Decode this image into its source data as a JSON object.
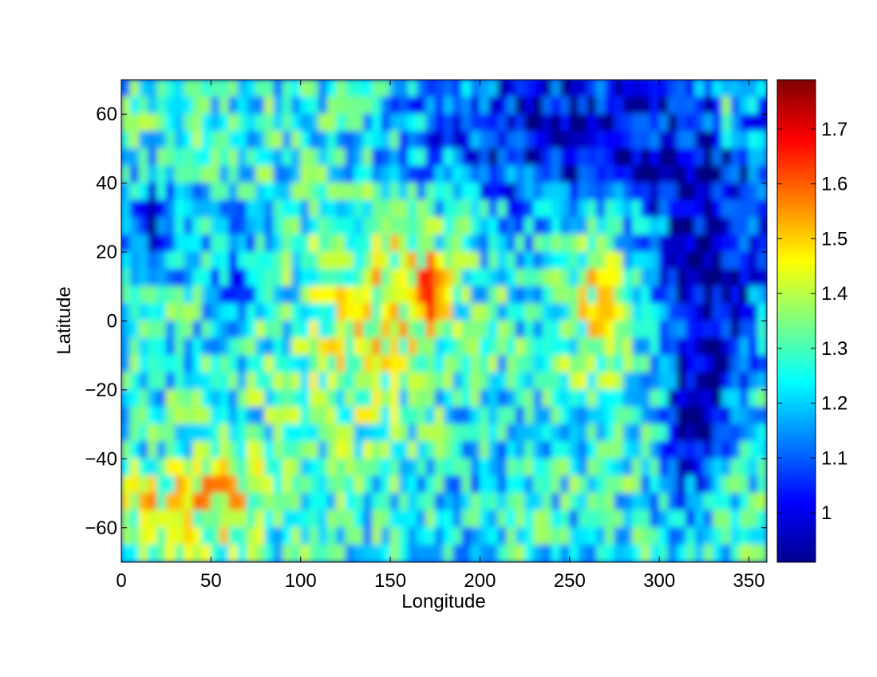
{
  "chart_data": {
    "type": "heatmap",
    "title": "",
    "xlabel": "Longitude",
    "ylabel": "Latitude",
    "xlim": [
      0,
      360
    ],
    "ylim": [
      -70,
      70
    ],
    "xticks": [
      0,
      50,
      100,
      150,
      200,
      250,
      300,
      350
    ],
    "yticks": [
      -60,
      -40,
      -20,
      0,
      20,
      40,
      60
    ],
    "grid": false,
    "colormap": "jet",
    "colorbar": {
      "position": "right",
      "range": [
        0.91,
        1.79
      ],
      "ticks": [
        1,
        1.1,
        1.2,
        1.3,
        1.4,
        1.5,
        1.6,
        1.7
      ]
    },
    "rows": 28,
    "cols": 72,
    "regions": [
      {
        "lon": 255,
        "lat": 55,
        "dlon": 90,
        "dlat": 25,
        "v": -0.35
      },
      {
        "lon": 330,
        "lat": 15,
        "dlon": 30,
        "dlat": 35,
        "v": -0.35
      },
      {
        "lon": 320,
        "lat": -30,
        "dlon": 18,
        "dlat": 25,
        "v": -0.3
      },
      {
        "lon": 20,
        "lat": 28,
        "dlon": 18,
        "dlat": 14,
        "v": -0.25
      },
      {
        "lon": 63,
        "lat": 18,
        "dlon": 16,
        "dlat": 14,
        "v": -0.18
      },
      {
        "lon": 150,
        "lat": 10,
        "dlon": 40,
        "dlat": 25,
        "v": 0.18
      },
      {
        "lon": 265,
        "lat": 10,
        "dlon": 20,
        "dlat": 25,
        "v": 0.2
      },
      {
        "lon": 172,
        "lat": 8,
        "dlon": 8,
        "dlat": 10,
        "v": 0.3
      },
      {
        "lon": 55,
        "lat": -52,
        "dlon": 25,
        "dlat": 15,
        "v": 0.25
      },
      {
        "lon": 15,
        "lat": -55,
        "dlon": 20,
        "dlat": 10,
        "v": 0.2
      },
      {
        "lon": 338,
        "lat": 58,
        "dlon": 6,
        "dlat": 5,
        "v": 0.4
      },
      {
        "lon": 125,
        "lat": -20,
        "dlon": 40,
        "dlat": 25,
        "v": 0.08
      },
      {
        "lon": 200,
        "lat": -45,
        "dlon": 40,
        "dlat": 20,
        "v": -0.05
      }
    ]
  }
}
